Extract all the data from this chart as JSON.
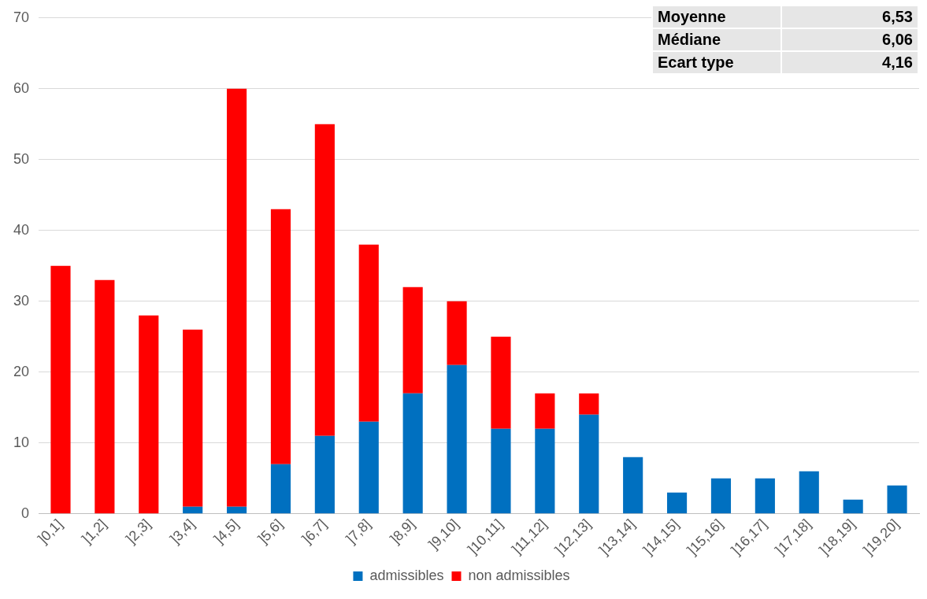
{
  "chart_data": {
    "type": "bar",
    "stacked": true,
    "categories": [
      "]0,1]",
      "]1,2]",
      "]2,3]",
      "]3,4]",
      "]4,5]",
      "]5,6]",
      "]6,7]",
      "]7,8]",
      "]8,9]",
      "]9,10]",
      "]10,11]",
      "]11,12]",
      "]12,13]",
      "]13,14]",
      "]14,15]",
      "]15,16]",
      "]16,17]",
      "]17,18]",
      "]18,19]",
      "]19,20]"
    ],
    "series": [
      {
        "name": "admissibles",
        "color": "#0070c0",
        "values": [
          0,
          0,
          0,
          1,
          1,
          7,
          11,
          13,
          17,
          21,
          12,
          12,
          14,
          8,
          3,
          5,
          5,
          6,
          2,
          4
        ]
      },
      {
        "name": "non admissibles",
        "color": "#ff0000",
        "values": [
          35,
          33,
          28,
          25,
          59,
          36,
          44,
          25,
          15,
          9,
          13,
          5,
          3,
          0,
          0,
          0,
          0,
          0,
          0,
          0
        ]
      }
    ],
    "ylim": [
      0,
      70
    ],
    "yticks": [
      0,
      10,
      20,
      30,
      40,
      50,
      60,
      70
    ],
    "grid": "y",
    "legend": "bottom",
    "annotations": [
      "Moyenne",
      "6,53",
      "Médiane",
      "6,06",
      "Ecart type",
      "4,16"
    ]
  }
}
